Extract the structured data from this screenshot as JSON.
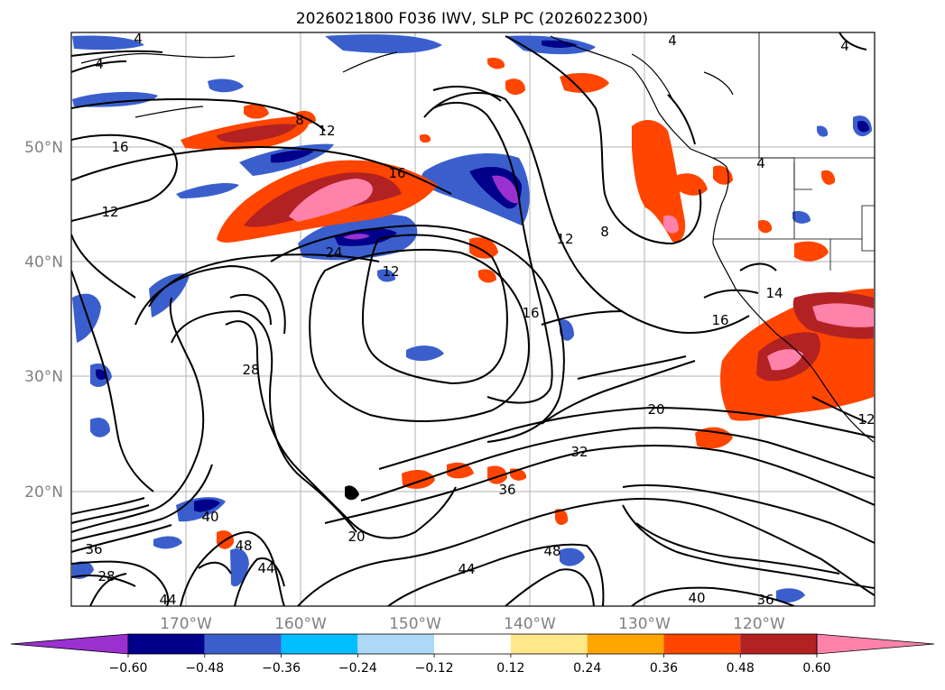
{
  "title": "2026021800 F036 IWV, SLP PC (2026022300)",
  "latitude_labels": [
    "50°N",
    "40°N",
    "30°N",
    "20°N"
  ],
  "longitude_labels": [
    "170°W",
    "160°W",
    "150°W",
    "140°W",
    "130°W",
    "120°W"
  ],
  "map": {
    "projection": "cylindrical",
    "lon_range": [
      -180,
      -110
    ],
    "lat_range": [
      10,
      60
    ],
    "gridlines": true,
    "coastlines": true,
    "borders": true
  },
  "colorbar": {
    "orientation": "horizontal",
    "extend": "both",
    "tick_labels": [
      "−0.60",
      "−0.48",
      "−0.36",
      "−0.24",
      "−0.12",
      "0.12",
      "0.24",
      "0.36",
      "0.48",
      "0.60"
    ],
    "colors": [
      "#9b30d0",
      "#00008b",
      "#3a5fcd",
      "#00bfff",
      "#add8f6",
      "#ffffff",
      "#ffe88a",
      "#ffa500",
      "#ff4500",
      "#b22222",
      "#ff82ab"
    ]
  },
  "contour_labels": [
    {
      "text": "4"
    },
    {
      "text": "4"
    },
    {
      "text": "4"
    },
    {
      "text": "4"
    },
    {
      "text": "4"
    },
    {
      "text": "16"
    },
    {
      "text": "12"
    },
    {
      "text": "8"
    },
    {
      "text": "12"
    },
    {
      "text": "16"
    },
    {
      "text": "8"
    },
    {
      "text": "12"
    },
    {
      "text": "24"
    },
    {
      "text": "12"
    },
    {
      "text": "16"
    },
    {
      "text": "16"
    },
    {
      "text": "14"
    },
    {
      "text": "28"
    },
    {
      "text": "20"
    },
    {
      "text": "32"
    },
    {
      "text": "36"
    },
    {
      "text": "20"
    },
    {
      "text": "40"
    },
    {
      "text": "48"
    },
    {
      "text": "44"
    },
    {
      "text": "44"
    },
    {
      "text": "48"
    },
    {
      "text": "40"
    },
    {
      "text": "36"
    },
    {
      "text": "36"
    },
    {
      "text": "28"
    },
    {
      "text": "44"
    },
    {
      "text": "12"
    }
  ]
}
